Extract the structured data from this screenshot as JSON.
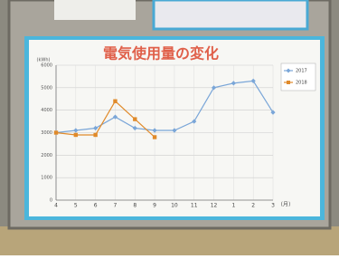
{
  "chart_data": {
    "type": "line",
    "title": "電気使用量の変化",
    "y_label": "(kWh)",
    "x_label": "(月)",
    "categories": [
      "4",
      "5",
      "6",
      "7",
      "8",
      "9",
      "10",
      "11",
      "12",
      "1",
      "2",
      "3"
    ],
    "series": [
      {
        "name": "2017",
        "color": "#7aa6d8",
        "marker": "diamond",
        "values": [
          3000,
          3100,
          3200,
          3700,
          3200,
          3100,
          3100,
          3500,
          5000,
          5200,
          5300,
          3900
        ]
      },
      {
        "name": "2018",
        "color": "#e08a2a",
        "marker": "square",
        "values": [
          3000,
          2900,
          2900,
          4400,
          3600,
          2800,
          null,
          null,
          null,
          null,
          null,
          null
        ]
      }
    ],
    "ylim": [
      0,
      6000
    ],
    "yticks": [
      0,
      1000,
      2000,
      3000,
      4000,
      5000,
      6000
    ],
    "grid": true,
    "legend": "top-right"
  }
}
